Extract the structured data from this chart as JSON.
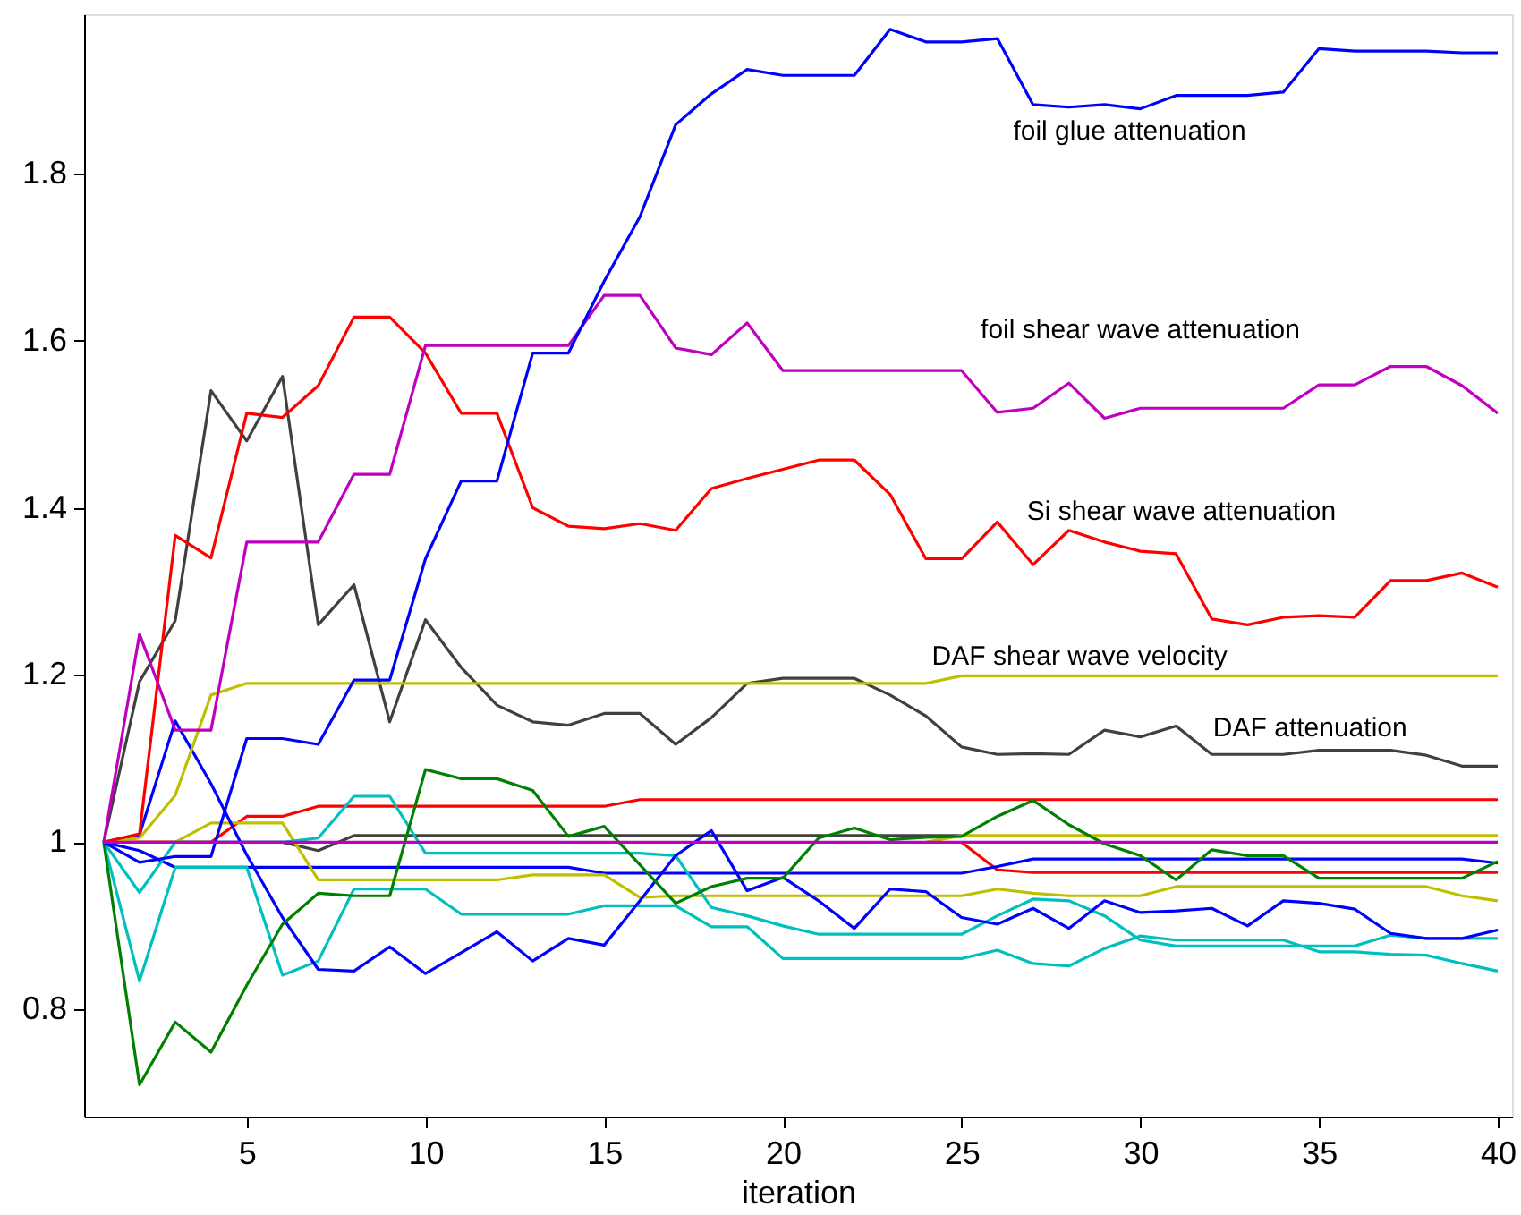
{
  "chart_data": {
    "type": "line",
    "xlabel": "iteration",
    "x": [
      1,
      2,
      3,
      4,
      5,
      6,
      7,
      8,
      9,
      10,
      11,
      12,
      13,
      14,
      15,
      16,
      17,
      18,
      19,
      20,
      21,
      22,
      23,
      24,
      25,
      26,
      27,
      28,
      29,
      30,
      31,
      32,
      33,
      34,
      35,
      36,
      37,
      38,
      39,
      40
    ],
    "xlim": [
      0.45,
      40.4
    ],
    "ylim": [
      0.672,
      1.99
    ],
    "xticks": [
      5,
      10,
      15,
      20,
      25,
      30,
      35,
      40
    ],
    "yticks": [
      0.8,
      1,
      1.2,
      1.4,
      1.6,
      1.8
    ],
    "grid": false,
    "marker": "none",
    "line_style": "solid",
    "series": [
      {
        "color": "#404040",
        "values": [
          1,
          1,
          1,
          1,
          1,
          1,
          0.99,
          1.008,
          1.008,
          1.008,
          1.008,
          1.008,
          1.008,
          1.008,
          1.008,
          1.008,
          1.008,
          1.008,
          1.008,
          1.008,
          1.008,
          1.008,
          1.008,
          1.008,
          1.008,
          null,
          null,
          null,
          null,
          null,
          null,
          null,
          null,
          null,
          null,
          null,
          null,
          null,
          null,
          null
        ]
      },
      {
        "color": "#bfbf00",
        "values": [
          null,
          null,
          null,
          null,
          null,
          null,
          null,
          null,
          null,
          null,
          null,
          null,
          null,
          null,
          null,
          null,
          null,
          null,
          null,
          null,
          null,
          null,
          null,
          1,
          1.008,
          1.008,
          1.008,
          1.008,
          1.008,
          1.008,
          1.008,
          1.008,
          1.008,
          1.008,
          1.008,
          1.008,
          1.008,
          1.008,
          1.008,
          1.008
        ]
      },
      {
        "color": "#ff0000",
        "values": [
          null,
          null,
          null,
          null,
          null,
          null,
          null,
          null,
          null,
          null,
          null,
          null,
          null,
          null,
          null,
          null,
          null,
          null,
          null,
          null,
          null,
          null,
          null,
          null,
          1,
          0.967,
          0.964,
          0.964,
          0.964,
          0.964,
          0.964,
          0.964,
          0.964,
          0.964,
          0.964,
          0.964,
          0.964,
          0.964,
          0.964,
          0.964
        ]
      },
      {
        "color": "#ff0000",
        "values": [
          1,
          1,
          1,
          1,
          1.031,
          1.031,
          1.043,
          1.043,
          1.043,
          1.043,
          1.043,
          1.043,
          1.043,
          1.043,
          1.043,
          1.051,
          1.051,
          1.051,
          1.051,
          1.051,
          1.051,
          1.051,
          1.051,
          1.051,
          1.051,
          1.051,
          1.051,
          1.051,
          1.051,
          1.051,
          1.051,
          1.051,
          1.051,
          1.051,
          1.051,
          1.051,
          1.051,
          1.051,
          1.051,
          1.051
        ]
      },
      {
        "color": "#0000ff",
        "values": [
          1,
          0.99,
          0.97,
          0.97,
          0.97,
          0.97,
          0.97,
          0.97,
          0.97,
          0.97,
          0.97,
          0.97,
          0.97,
          0.97,
          0.963,
          0.963,
          0.963,
          0.963,
          0.963,
          0.963,
          0.963,
          0.963,
          0.963,
          0.963,
          0.963,
          0.971,
          0.98,
          0.98,
          0.98,
          0.98,
          0.98,
          0.98,
          0.98,
          0.98,
          0.98,
          0.98,
          0.98,
          0.98,
          0.98,
          0.975
        ]
      },
      {
        "color": "#bfbf00",
        "values": [
          1,
          1,
          1,
          1.023,
          1.023,
          1.023,
          0.955,
          0.955,
          0.955,
          0.955,
          0.955,
          0.955,
          0.961,
          0.961,
          0.961,
          0.934,
          0.936,
          0.936,
          0.936,
          0.936,
          0.936,
          0.936,
          0.936,
          0.936,
          0.936,
          0.944,
          0.939,
          0.936,
          0.936,
          0.936,
          0.947,
          0.947,
          0.947,
          0.947,
          0.947,
          0.947,
          0.947,
          0.947,
          0.936,
          0.93
        ]
      },
      {
        "color": "#00bfbf",
        "values": [
          1,
          0.94,
          1,
          1,
          1,
          1,
          1.005,
          1.055,
          1.055,
          0.987,
          0.987,
          0.987,
          0.987,
          0.987,
          0.987,
          0.987,
          0.984,
          0.922,
          0.912,
          0.9,
          0.89,
          0.89,
          0.89,
          0.89,
          0.89,
          0.912,
          0.932,
          0.93,
          0.912,
          0.883,
          0.876,
          0.876,
          0.876,
          0.876,
          0.876,
          0.876,
          0.889,
          0.885,
          0.885,
          0.885
        ]
      },
      {
        "color": "#00bfbf",
        "values": [
          1,
          0.834,
          0.97,
          0.97,
          0.97,
          0.841,
          0.858,
          0.944,
          0.944,
          0.944,
          0.914,
          0.914,
          0.914,
          0.914,
          0.924,
          0.924,
          0.924,
          0.899,
          0.899,
          0.861,
          0.861,
          0.861,
          0.861,
          0.861,
          0.861,
          0.871,
          0.855,
          0.852,
          0.873,
          0.888,
          0.883,
          0.883,
          0.883,
          0.883,
          0.869,
          0.869,
          0.866,
          0.865,
          0.855,
          0.846
        ]
      },
      {
        "color": "#0000ff",
        "values": [
          1,
          1.009,
          1.145,
          1.07,
          0.985,
          0.91,
          0.848,
          0.846,
          0.875,
          0.843,
          0.868,
          0.893,
          0.858,
          0.885,
          0.877,
          0.93,
          0.984,
          1.014,
          0.942,
          0.958,
          0.93,
          0.897,
          0.944,
          0.941,
          0.91,
          0.902,
          0.921,
          0.897,
          0.93,
          0.916,
          0.918,
          0.921,
          0.9,
          0.93,
          0.927,
          0.92,
          0.891,
          0.885,
          0.885,
          0.895
        ]
      },
      {
        "color": "#008000",
        "values": [
          1,
          0.71,
          0.785,
          0.749,
          0.829,
          0.902,
          0.939,
          0.936,
          0.936,
          1.087,
          1.076,
          1.076,
          1.062,
          1.007,
          1.019,
          0.973,
          0.927,
          0.947,
          0.957,
          0.957,
          1.005,
          1.017,
          1.003,
          1.006,
          1.007,
          1.031,
          1.05,
          1.021,
          0.998,
          0.984,
          0.955,
          0.991,
          0.984,
          0.984,
          0.957,
          0.957,
          0.957,
          0.957,
          0.957,
          0.977
        ]
      },
      {
        "name": "DAF attenuation",
        "color": "#404040",
        "values": [
          1,
          1.192,
          1.265,
          1.54,
          1.48,
          1.557,
          1.26,
          1.308,
          1.144,
          1.266,
          1.209,
          1.164,
          1.144,
          1.14,
          1.154,
          1.154,
          1.117,
          1.149,
          1.19,
          1.196,
          1.196,
          1.196,
          1.176,
          1.151,
          1.114,
          1.105,
          1.106,
          1.105,
          1.134,
          1.126,
          1.139,
          1.105,
          1.105,
          1.105,
          1.11,
          1.11,
          1.11,
          1.104,
          1.091,
          1.091
        ]
      },
      {
        "name": "DAF shear wave velocity",
        "color": "#bfbf00",
        "values": [
          1,
          1.005,
          1.056,
          1.176,
          1.19,
          1.19,
          1.19,
          1.19,
          1.19,
          1.19,
          1.19,
          1.19,
          1.19,
          1.19,
          1.19,
          1.19,
          1.19,
          1.19,
          1.19,
          1.19,
          1.19,
          1.19,
          1.19,
          1.19,
          1.199,
          1.199,
          1.199,
          1.199,
          1.199,
          1.199,
          1.199,
          1.199,
          1.199,
          1.199,
          1.199,
          1.199,
          1.199,
          1.199,
          1.199,
          1.199
        ]
      },
      {
        "name": "Si shear wave attenuation",
        "color": "#ff0000",
        "values": [
          1,
          1.01,
          1.367,
          1.34,
          1.513,
          1.508,
          1.546,
          1.628,
          1.628,
          1.585,
          1.513,
          1.513,
          1.4,
          1.378,
          1.375,
          1.381,
          1.373,
          1.423,
          1.435,
          1.446,
          1.457,
          1.457,
          1.416,
          1.339,
          1.339,
          1.383,
          1.332,
          1.373,
          1.359,
          1.348,
          1.345,
          1.267,
          1.26,
          1.269,
          1.271,
          1.269,
          1.313,
          1.313,
          1.322,
          1.305
        ]
      },
      {
        "name": "foil shear wave attenuation",
        "color": "#bf00bf",
        "values": [
          1,
          1.249,
          1.134,
          1.134,
          1.359,
          1.359,
          1.359,
          1.44,
          1.44,
          1.594,
          1.594,
          1.594,
          1.594,
          1.594,
          1.654,
          1.654,
          1.591,
          1.583,
          1.621,
          1.564,
          1.564,
          1.564,
          1.564,
          1.564,
          1.564,
          1.514,
          1.519,
          1.549,
          1.507,
          1.519,
          1.519,
          1.519,
          1.519,
          1.519,
          1.547,
          1.547,
          1.569,
          1.569,
          1.546,
          1.513
        ]
      },
      {
        "name": "foil glue attenuation",
        "color": "#0000ff",
        "values": [
          1,
          0.976,
          0.983,
          0.983,
          1.124,
          1.124,
          1.117,
          1.194,
          1.194,
          1.339,
          1.432,
          1.432,
          1.585,
          1.585,
          1.671,
          1.748,
          1.858,
          1.895,
          1.924,
          1.917,
          1.917,
          1.917,
          1.972,
          1.957,
          1.957,
          1.961,
          1.882,
          1.879,
          1.882,
          1.877,
          1.893,
          1.893,
          1.893,
          1.897,
          1.949,
          1.946,
          1.946,
          1.946,
          1.944,
          1.944
        ]
      },
      {
        "color": "#bf00bf",
        "values": [
          1,
          1,
          1,
          1,
          1,
          1,
          1,
          1,
          1,
          1,
          1,
          1,
          1,
          1,
          1,
          1,
          1,
          1,
          1,
          1,
          1,
          1,
          1,
          1,
          1,
          1,
          1,
          1,
          1,
          1,
          1,
          1,
          1,
          1,
          1,
          1,
          1,
          1,
          1,
          1
        ]
      }
    ]
  }
}
